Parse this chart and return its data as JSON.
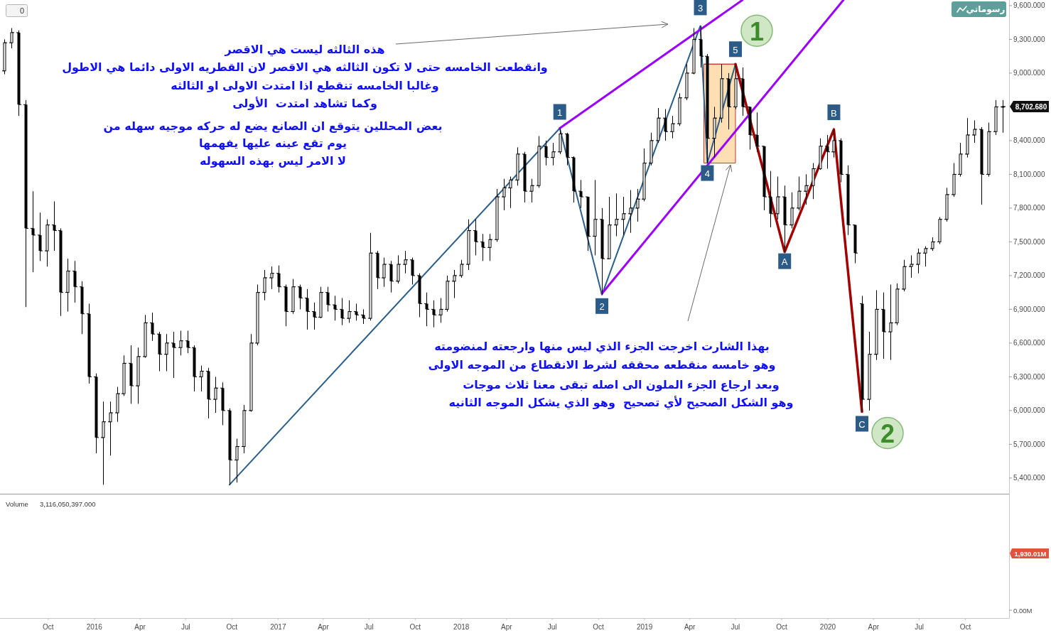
{
  "chart_data": {
    "type": "candlestick",
    "color": "#000000",
    "x": [
      "2015-07-06",
      "2015-07-20",
      "2015-08-03",
      "2015-08-17",
      "2015-08-31",
      "2015-09-14",
      "2015-09-28",
      "2015-10-12",
      "2015-10-26",
      "2015-11-09",
      "2015-11-23",
      "2015-12-07",
      "2015-12-21",
      "2016-01-04",
      "2016-01-18",
      "2016-02-01",
      "2016-02-15",
      "2016-02-29",
      "2016-03-14",
      "2016-03-28",
      "2016-04-11",
      "2016-04-25",
      "2016-05-09",
      "2016-05-23",
      "2016-06-06",
      "2016-06-20",
      "2016-07-04",
      "2016-07-18",
      "2016-08-01",
      "2016-08-15",
      "2016-08-29",
      "2016-09-12",
      "2016-09-26",
      "2016-10-10",
      "2016-10-24",
      "2016-11-07",
      "2016-11-21",
      "2016-12-05",
      "2016-12-19",
      "2017-01-02",
      "2017-01-16",
      "2017-01-30",
      "2017-02-13",
      "2017-02-27",
      "2017-03-13",
      "2017-03-27",
      "2017-04-10",
      "2017-04-24",
      "2017-05-08",
      "2017-05-22",
      "2017-06-05",
      "2017-06-19",
      "2017-07-03",
      "2017-07-17",
      "2017-07-31",
      "2017-08-14",
      "2017-08-28",
      "2017-09-11",
      "2017-09-25",
      "2017-10-09",
      "2017-10-23",
      "2017-11-06",
      "2017-11-20",
      "2017-12-04",
      "2017-12-18",
      "2018-01-01",
      "2018-01-15",
      "2018-01-29",
      "2018-02-12",
      "2018-02-26",
      "2018-03-12",
      "2018-03-26",
      "2018-04-09",
      "2018-04-23",
      "2018-05-07",
      "2018-05-21",
      "2018-06-04",
      "2018-06-18",
      "2018-07-02",
      "2018-07-16",
      "2018-07-30",
      "2018-08-13",
      "2018-08-27",
      "2018-09-10",
      "2018-09-24",
      "2018-10-08",
      "2018-10-22",
      "2018-11-05",
      "2018-11-19",
      "2018-12-03",
      "2018-12-17",
      "2018-12-31",
      "2019-01-14",
      "2019-01-28",
      "2019-02-11",
      "2019-02-25",
      "2019-03-11",
      "2019-03-25",
      "2019-04-08",
      "2019-04-22",
      "2019-05-06",
      "2019-05-20",
      "2019-06-03",
      "2019-06-17",
      "2019-07-01",
      "2019-07-15",
      "2019-07-29",
      "2019-08-12",
      "2019-08-26",
      "2019-09-09",
      "2019-09-23",
      "2019-10-07",
      "2019-10-21",
      "2019-11-04",
      "2019-11-18",
      "2019-12-02",
      "2019-12-16",
      "2019-12-30",
      "2020-01-13",
      "2020-01-27",
      "2020-02-10",
      "2020-02-24",
      "2020-03-09",
      "2020-03-23",
      "2020-04-06",
      "2020-04-20",
      "2020-05-04",
      "2020-05-18",
      "2020-06-01",
      "2020-06-15",
      "2020-06-29",
      "2020-07-13",
      "2020-07-27",
      "2020-08-10",
      "2020-08-24",
      "2020-09-07",
      "2020-09-21",
      "2020-10-05",
      "2020-10-19",
      "2020-11-02",
      "2020-11-16",
      "2020-11-30",
      "2020-12-14"
    ],
    "ohlc": [
      [
        9020,
        9300,
        8990,
        9270
      ],
      [
        9270,
        9400,
        9220,
        9360
      ],
      [
        9360,
        9380,
        8620,
        8720
      ],
      [
        8720,
        8760,
        6920,
        7620
      ],
      [
        7620,
        7950,
        7230,
        7560
      ],
      [
        7560,
        7760,
        7330,
        7420
      ],
      [
        7420,
        7700,
        7280,
        7650
      ],
      [
        7650,
        7860,
        7420,
        7600
      ],
      [
        7600,
        7620,
        6840,
        7050
      ],
      [
        7050,
        7350,
        6880,
        7240
      ],
      [
        7240,
        7330,
        6960,
        7100
      ],
      [
        7100,
        7150,
        6680,
        6860
      ],
      [
        6860,
        6950,
        6240,
        6300
      ],
      [
        6300,
        6330,
        5620,
        5760
      ],
      [
        5760,
        6080,
        5340,
        5900
      ],
      [
        5900,
        6080,
        5600,
        5980
      ],
      [
        5980,
        6210,
        5900,
        6150
      ],
      [
        6150,
        6490,
        6130,
        6420
      ],
      [
        6420,
        6580,
        6060,
        6220
      ],
      [
        6220,
        6560,
        6060,
        6480
      ],
      [
        6480,
        6850,
        6470,
        6780
      ],
      [
        6780,
        6870,
        6620,
        6680
      ],
      [
        6680,
        6700,
        6350,
        6500
      ],
      [
        6500,
        6680,
        6350,
        6600
      ],
      [
        6600,
        6700,
        6290,
        6560
      ],
      [
        6560,
        6710,
        6490,
        6620
      ],
      [
        6620,
        6710,
        6510,
        6560
      ],
      [
        6560,
        6580,
        6170,
        6300
      ],
      [
        6300,
        6400,
        6170,
        6350
      ],
      [
        6350,
        6380,
        5930,
        6100
      ],
      [
        6100,
        6300,
        5980,
        6200
      ],
      [
        6200,
        6250,
        5870,
        6000
      ],
      [
        6000,
        6020,
        5340,
        5560
      ],
      [
        5560,
        5750,
        5360,
        5680
      ],
      [
        5680,
        6050,
        5620,
        6000
      ],
      [
        6000,
        6680,
        5990,
        6600
      ],
      [
        6600,
        7120,
        6580,
        7050
      ],
      [
        7050,
        7250,
        6980,
        7180
      ],
      [
        7180,
        7280,
        7080,
        7220
      ],
      [
        7220,
        7290,
        7050,
        7100
      ],
      [
        7100,
        7120,
        6750,
        6880
      ],
      [
        6880,
        7170,
        6860,
        7100
      ],
      [
        7100,
        7120,
        6900,
        7000
      ],
      [
        7000,
        7080,
        6720,
        6880
      ],
      [
        6880,
        6960,
        6720,
        6830
      ],
      [
        6830,
        7100,
        6820,
        7050
      ],
      [
        7050,
        7100,
        6880,
        6940
      ],
      [
        6940,
        7020,
        6800,
        6900
      ],
      [
        6900,
        7000,
        6760,
        6820
      ],
      [
        6820,
        6980,
        6780,
        6880
      ],
      [
        6880,
        6950,
        6800,
        6850
      ],
      [
        6850,
        6900,
        6770,
        6820
      ],
      [
        6820,
        7580,
        6800,
        7400
      ],
      [
        7400,
        7420,
        7080,
        7180
      ],
      [
        7180,
        7360,
        7100,
        7300
      ],
      [
        7300,
        7330,
        7050,
        7150
      ],
      [
        7150,
        7380,
        7130,
        7300
      ],
      [
        7300,
        7420,
        7220,
        7340
      ],
      [
        7340,
        7360,
        7120,
        7200
      ],
      [
        7200,
        7220,
        6830,
        6950
      ],
      [
        6950,
        7050,
        6750,
        6900
      ],
      [
        6900,
        6980,
        6740,
        6850
      ],
      [
        6850,
        7000,
        6780,
        6900
      ],
      [
        6900,
        7200,
        6880,
        7150
      ],
      [
        7150,
        7250,
        7000,
        7200
      ],
      [
        7200,
        7340,
        7180,
        7300
      ],
      [
        7300,
        7700,
        7250,
        7600
      ],
      [
        7600,
        7700,
        7380,
        7500
      ],
      [
        7500,
        7570,
        7330,
        7450
      ],
      [
        7450,
        7570,
        7330,
        7520
      ],
      [
        7520,
        7970,
        7500,
        7900
      ],
      [
        7900,
        8060,
        7780,
        7980
      ],
      [
        7980,
        8080,
        7800,
        8050
      ],
      [
        8050,
        8340,
        8000,
        8280
      ],
      [
        8280,
        8300,
        7850,
        7950
      ],
      [
        7950,
        8060,
        7850,
        8000
      ],
      [
        8000,
        8440,
        7980,
        8350
      ],
      [
        8350,
        8400,
        8180,
        8250
      ],
      [
        8250,
        8380,
        8180,
        8300
      ],
      [
        8300,
        8510,
        8280,
        8460
      ],
      [
        8460,
        8470,
        8180,
        8250
      ],
      [
        8250,
        8260,
        7850,
        7950
      ],
      [
        7950,
        8050,
        7800,
        7900
      ],
      [
        7900,
        7900,
        7420,
        7550
      ],
      [
        7550,
        8050,
        7380,
        7700
      ],
      [
        7700,
        7800,
        7030,
        7350
      ],
      [
        7350,
        7900,
        7350,
        7650
      ],
      [
        7650,
        7930,
        7550,
        7700
      ],
      [
        7700,
        7900,
        7560,
        7750
      ],
      [
        7750,
        7960,
        7580,
        7800
      ],
      [
        7800,
        7970,
        7680,
        7880
      ],
      [
        7880,
        8330,
        7860,
        8200
      ],
      [
        8200,
        8470,
        8180,
        8400
      ],
      [
        8400,
        8690,
        8380,
        8600
      ],
      [
        8600,
        8680,
        8400,
        8480
      ],
      [
        8480,
        8620,
        8420,
        8550
      ],
      [
        8550,
        8820,
        8530,
        8780
      ],
      [
        8780,
        9080,
        8760,
        9000
      ],
      [
        9000,
        9400,
        8990,
        9300
      ],
      [
        9300,
        9420,
        9050,
        9150
      ],
      [
        9150,
        9170,
        8200,
        8420
      ],
      [
        8420,
        8700,
        8250,
        8600
      ],
      [
        8600,
        9080,
        8560,
        8950
      ],
      [
        8950,
        9000,
        8500,
        8700
      ],
      [
        8700,
        9080,
        8680,
        8950
      ],
      [
        8950,
        9050,
        8620,
        8700
      ],
      [
        8700,
        8700,
        8320,
        8450
      ],
      [
        8450,
        8650,
        8300,
        8350
      ],
      [
        8350,
        8350,
        7780,
        7900
      ],
      [
        7900,
        8130,
        7630,
        7750
      ],
      [
        7750,
        8080,
        7700,
        7900
      ],
      [
        7900,
        8000,
        7410,
        7650
      ],
      [
        7650,
        7940,
        7620,
        7800
      ],
      [
        7800,
        8080,
        7780,
        7950
      ],
      [
        7950,
        8100,
        7830,
        8000
      ],
      [
        8000,
        8200,
        7880,
        8150
      ],
      [
        8150,
        8420,
        8140,
        8350
      ],
      [
        8350,
        8450,
        8150,
        8300
      ],
      [
        8300,
        8500,
        8250,
        8400
      ],
      [
        8400,
        8420,
        8030,
        8100
      ],
      [
        8100,
        8180,
        7560,
        7650
      ],
      [
        7650,
        7650,
        7310,
        7400
      ],
      [
        6950,
        7020,
        5990,
        6100
      ],
      [
        6100,
        6700,
        6000,
        6500
      ],
      [
        6500,
        7070,
        6450,
        6900
      ],
      [
        6900,
        7050,
        6460,
        6700
      ],
      [
        6700,
        7120,
        6450,
        6780
      ],
      [
        6780,
        7130,
        6760,
        7080
      ],
      [
        7080,
        7340,
        7060,
        7280
      ],
      [
        7280,
        7380,
        7180,
        7300
      ],
      [
        7300,
        7440,
        7220,
        7400
      ],
      [
        7400,
        7460,
        7280,
        7440
      ],
      [
        7440,
        7540,
        7420,
        7500
      ],
      [
        7500,
        7720,
        7480,
        7700
      ],
      [
        7700,
        7980,
        7680,
        7920
      ],
      [
        7920,
        8200,
        7900,
        8100
      ],
      [
        8100,
        8380,
        8080,
        8280
      ],
      [
        8280,
        8600,
        8250,
        8450
      ],
      [
        8450,
        8580,
        8380,
        8500
      ],
      [
        8500,
        8520,
        7830,
        8100
      ],
      [
        8100,
        8560,
        8080,
        8480
      ],
      [
        8480,
        8760,
        8450,
        8700
      ],
      [
        8700,
        8760,
        8470,
        8702.68
      ]
    ],
    "series": [
      {
        "type": "line",
        "color": "#c0392b",
        "x": [
          "2019-04-29",
          "2019-07-01"
        ],
        "values": [
          9080,
          9080
        ],
        "lower": [
          8200,
          8200
        ],
        "upper": [
          9080,
          9080
        ]
      },
      {
        "type": "line",
        "color": "#2b5f8a",
        "x": [
          "2016-09-26",
          "2018-07-16",
          "2018-10-08",
          "2019-04-22",
          "2019-05-06",
          "2019-07-01"
        ],
        "values": [
          5340,
          8510,
          7030,
          9420,
          8200,
          9080
        ]
      },
      {
        "type": "line",
        "color": "#a30000",
        "x": [
          "2019-07-01",
          "2019-10-07",
          "2020-01-13",
          "2020-03-09"
        ],
        "values": [
          9080,
          7410,
          8500,
          5990
        ]
      },
      {
        "type": "line",
        "color": "#9b00ff",
        "x": [
          "2018-07-16",
          "2019-07-15"
        ],
        "values": [
          8510,
          9650
        ]
      },
      {
        "type": "line",
        "color": "#9b00ff",
        "x": [
          "2018-10-08",
          "2020-02-01"
        ],
        "values": [
          7040,
          9650
        ]
      }
    ],
    "xlim": [
      "2015-06-27",
      "2020-12-27"
    ],
    "ylim": [
      4155,
      9650
    ],
    "y2lim": [
      -265,
      20720
    ],
    "xticks": [
      {
        "value": "2015-10-01",
        "label": "Oct"
      },
      {
        "value": "2016-01-01",
        "label": "2016"
      },
      {
        "value": "2016-04-01",
        "label": "Apr"
      },
      {
        "value": "2016-07-01",
        "label": "Jul"
      },
      {
        "value": "2016-10-01",
        "label": "Oct"
      },
      {
        "value": "2017-01-01",
        "label": "2017"
      },
      {
        "value": "2017-04-01",
        "label": "Apr"
      },
      {
        "value": "2017-07-01",
        "label": "Jul"
      },
      {
        "value": "2017-10-01",
        "label": "Oct"
      },
      {
        "value": "2018-01-01",
        "label": "2018"
      },
      {
        "value": "2018-04-01",
        "label": "Apr"
      },
      {
        "value": "2018-07-01",
        "label": "Jul"
      },
      {
        "value": "2018-10-01",
        "label": "Oct"
      },
      {
        "value": "2019-01-01",
        "label": "2019"
      },
      {
        "value": "2019-04-01",
        "label": "Apr"
      },
      {
        "value": "2019-07-01",
        "label": "Jul"
      },
      {
        "value": "2019-10-01",
        "label": "Oct"
      },
      {
        "value": "2020-01-01",
        "label": "2020"
      },
      {
        "value": "2020-04-01",
        "label": "Apr"
      },
      {
        "value": "2020-07-01",
        "label": "Jul"
      },
      {
        "value": "2020-10-01",
        "label": "Oct"
      }
    ],
    "yticks": [
      {
        "value": 5400,
        "label": "5,400.000"
      },
      {
        "value": 5700,
        "label": "5,700.000"
      },
      {
        "value": 6000,
        "label": "6,000.000"
      },
      {
        "value": 6300,
        "label": "6,300.000"
      },
      {
        "value": 6600,
        "label": "6,600.000"
      },
      {
        "value": 6900,
        "label": "6,900.000"
      },
      {
        "value": 7200,
        "label": "7,200.000"
      },
      {
        "value": 7500,
        "label": "7,500.000"
      },
      {
        "value": 7800,
        "label": "7,800.000"
      },
      {
        "value": 8100,
        "label": "8,100.000"
      },
      {
        "value": 8400,
        "label": "8,400.000"
      },
      {
        "value": 9000,
        "label": "9,000.000"
      },
      {
        "value": 9300,
        "label": "9,300.000"
      },
      {
        "value": 9600,
        "label": "9,600.000"
      }
    ],
    "y2ticks": [
      {
        "value": 0,
        "label": "0.00M"
      },
      {
        "value": 1930.01,
        "label": "1,930.01M"
      }
    ],
    "ref_lines": [
      {
        "axis": "y",
        "value": 5260,
        "color": "#9a9a9a"
      }
    ],
    "annotations": [
      "هذه الثالثه ليست هي الاقصر\nوانقطعت الخامسه حتى لا تكون الثالثه هي الاقصر لان القطريه الاولى دائما هي الاطول\nوغالبا الخامسه تنقطع اذا امتدت الاولى او الثالثه\nوكما تشاهد امتدت  الأولى",
      "بعض المحللين يتوقع ان الصانع يضع له حركه موجيه سهله من\nيوم تقع عينه عليها يفهمها\nلا الامر ليس بهذه السهوله",
      "بهذا الشارت اخرجت الجزء الذي ليس منها وارجعته لمنضومته\nوهو خامسه منقطعه محققه لشرط الانقطاع من الموجه الاولى",
      "وبعد ارجاع الجزء الملون الى اصله تبقى معنا ثلاث موجات\nوهو الشكل الصحيح لأي تصحيح  وهو الذي يشكل الموجه الثانيه",
      {
        "text": "1",
        "x": "2018-07-16",
        "y": 8510
      },
      {
        "text": "2",
        "x": "2018-10-08",
        "y": 7030
      },
      {
        "text": "3",
        "x": "2019-04-22",
        "y": 9420
      },
      {
        "text": "4",
        "x": "2019-05-06",
        "y": 8200
      },
      {
        "text": "5",
        "x": "2019-07-01",
        "y": 9080
      },
      {
        "text": "A",
        "x": "2019-10-07",
        "y": 7410
      },
      {
        "text": "B",
        "x": "2020-01-13",
        "y": 8500
      },
      {
        "text": "C",
        "x": "2020-03-09",
        "y": 5990
      },
      {
        "text": "1",
        "x": "2019-07-01",
        "y": 9080
      },
      {
        "text": "2",
        "x": "2020-03-09",
        "y": 5990
      },
      "8,702.680",
      "0",
      "رسوماتي",
      "Volume",
      "3,116,050,397.000"
    ]
  }
}
